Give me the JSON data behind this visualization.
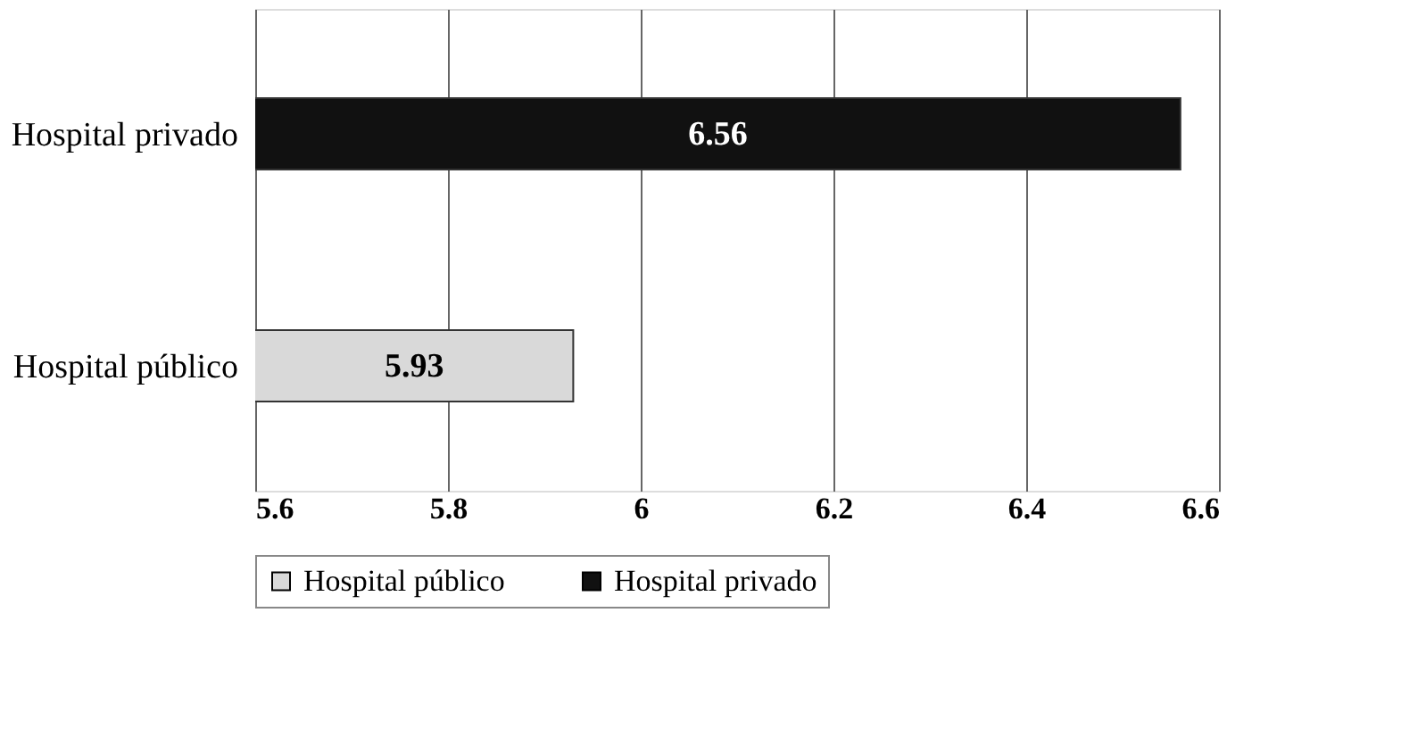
{
  "chart_data": {
    "type": "bar",
    "orientation": "horizontal",
    "categories": [
      "Hospital privado",
      "Hospital público"
    ],
    "series": [
      {
        "name": "Hospital público",
        "color": "#d9d9d9",
        "values": [
          null,
          5.93
        ]
      },
      {
        "name": "Hospital privado",
        "color": "#111111",
        "values": [
          6.56,
          null
        ]
      }
    ],
    "xlim": [
      5.6,
      6.6
    ],
    "xticks": [
      5.6,
      5.8,
      6,
      6.2,
      6.4,
      6.6
    ],
    "grid": "x",
    "legend": "bottom",
    "data_labels": true
  }
}
